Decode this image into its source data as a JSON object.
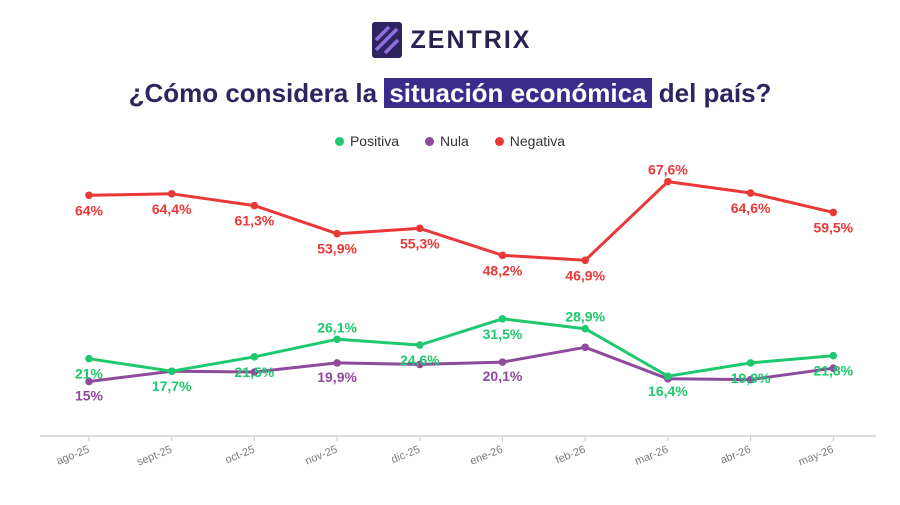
{
  "logo": {
    "text": "ZENTRIX"
  },
  "title": {
    "prefix": "¿Cómo considera la ",
    "highlight": "situación económica",
    "suffix": " del país?"
  },
  "colors": {
    "Positiva": "#1ec86e",
    "Nula": "#8e4a9b",
    "Negativa": "#e93838"
  },
  "chart_data": {
    "type": "line",
    "title": "¿Cómo considera la situación económica del país?",
    "legend": "top-center",
    "x": [
      "ago-25",
      "sept-25",
      "oct-25",
      "nov-25",
      "dic-25",
      "ene-26",
      "feb-26",
      "mar-26",
      "abr-26",
      "may-26"
    ],
    "series": [
      {
        "name": "Positiva",
        "values": [
          21,
          17.7,
          21.5,
          26.1,
          24.6,
          31.5,
          28.9,
          16.4,
          19.9,
          21.8
        ],
        "labels": [
          "21%",
          "17,7%",
          "21,5%",
          "26,1%",
          "24,6%",
          "31,5%",
          "28,9%",
          "16,4%",
          "19,9%",
          "21,8%"
        ]
      },
      {
        "name": "Nula",
        "values": [
          15,
          17.7,
          17.5,
          19.9,
          19.5,
          20.1,
          24,
          15.7,
          15.5,
          18.5
        ],
        "labels": [
          "15%",
          "",
          "",
          "19,9%",
          "",
          "20,1%",
          "",
          "",
          "",
          ""
        ]
      },
      {
        "name": "Negativa",
        "values": [
          64,
          64.4,
          61.3,
          53.9,
          55.3,
          48.2,
          46.9,
          67.6,
          64.6,
          59.5
        ],
        "labels": [
          "64%",
          "64,4%",
          "61,3%",
          "53,9%",
          "55,3%",
          "48,2%",
          "46,9%",
          "67,6%",
          "64,6%",
          "59,5%"
        ]
      }
    ]
  }
}
